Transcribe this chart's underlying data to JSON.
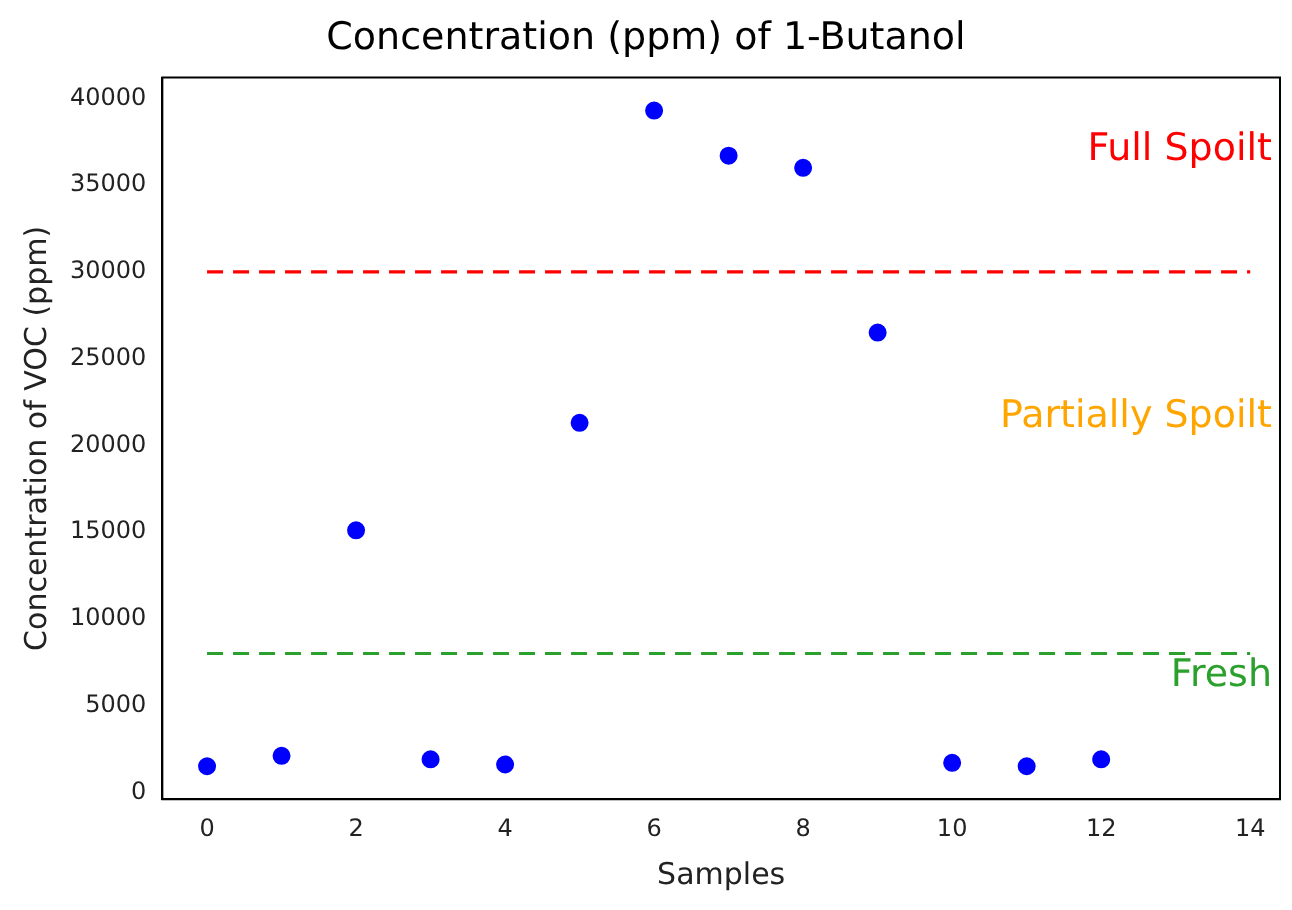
{
  "chart_data": {
    "type": "scatter",
    "title": "Concentration (ppm) of 1-Butanol",
    "xlabel": "Samples",
    "ylabel": "Concentration of VOC (ppm)",
    "x": [
      0,
      1,
      2,
      3,
      4,
      5,
      6,
      7,
      8,
      9,
      10,
      11,
      12
    ],
    "series": [
      {
        "color": "#0000ff",
        "values": [
          1500,
          2100,
          15100,
          1900,
          1600,
          21300,
          39300,
          36700,
          36000,
          26500,
          1700,
          1500,
          1900
        ]
      }
    ],
    "xlim": [
      -0.6,
      14.4
    ],
    "xticks": [
      0,
      2,
      4,
      6,
      8,
      10,
      12,
      14
    ],
    "ylim": [
      -400,
      41200
    ],
    "yticks": [
      0,
      5000,
      10000,
      15000,
      20000,
      25000,
      30000,
      35000,
      40000
    ],
    "ref_lines": [
      {
        "axis": "y",
        "value": 30000,
        "color": "#ff0000",
        "line_style": "dashed"
      },
      {
        "axis": "y",
        "value": 8000,
        "color": "#2ca02c",
        "line_style": "dashed"
      }
    ],
    "annotations": [
      "Full Spoilt",
      "Partially Spoilt",
      "Fresh"
    ],
    "grid": false,
    "legend": false,
    "marker": "circle"
  }
}
